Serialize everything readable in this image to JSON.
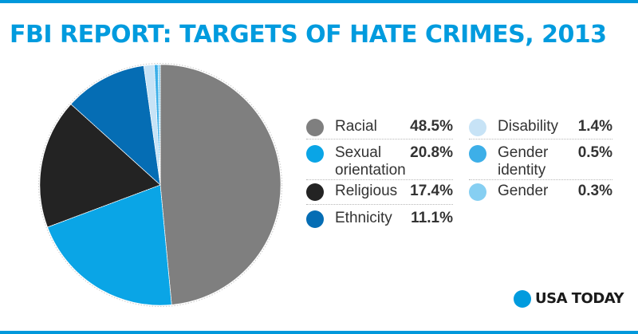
{
  "title": "FBI REPORT: TARGETS OF HATE CRIMES, 2013",
  "brand": "USA TODAY",
  "colors": {
    "accent": "#009bde",
    "racial": "#7f7f7f",
    "sexual_orientation": "#0aa5e6",
    "religious": "#232323",
    "ethnicity": "#056db4",
    "disability": "#c7e3f6",
    "gender_identity": "#3dafe8",
    "gender": "#86cff2"
  },
  "chart_data": {
    "type": "pie",
    "title": "FBI REPORT: TARGETS OF HATE CRIMES, 2013",
    "series": [
      {
        "values": [
          48.5,
          20.8,
          17.4,
          11.1,
          1.4,
          0.5,
          0.3
        ]
      }
    ],
    "categories": [
      "Racial",
      "Sexual orientation",
      "Religious",
      "Ethnicity",
      "Disability",
      "Gender identity",
      "Gender"
    ],
    "slices": [
      {
        "label_line1": "Racial",
        "label_line2": "",
        "value": 48.5,
        "value_label": "48.5%",
        "color": "#7f7f7f"
      },
      {
        "label_line1": "Sexual",
        "label_line2": "orientation",
        "value": 20.8,
        "value_label": "20.8%",
        "color": "#0aa5e6"
      },
      {
        "label_line1": "Religious",
        "label_line2": "",
        "value": 17.4,
        "value_label": "17.4%",
        "color": "#232323"
      },
      {
        "label_line1": "Ethnicity",
        "label_line2": "",
        "value": 11.1,
        "value_label": "11.1%",
        "color": "#056db4"
      },
      {
        "label_line1": "Disability",
        "label_line2": "",
        "value": 1.4,
        "value_label": "1.4%",
        "color": "#c7e3f6"
      },
      {
        "label_line1": "Gender",
        "label_line2": "identity",
        "value": 0.5,
        "value_label": "0.5%",
        "color": "#3dafe8"
      },
      {
        "label_line1": "Gender",
        "label_line2": "",
        "value": 0.3,
        "value_label": "0.3%",
        "color": "#86cff2"
      }
    ],
    "start_angle_deg": 0,
    "direction": "clockwise",
    "legend_position": "right"
  }
}
